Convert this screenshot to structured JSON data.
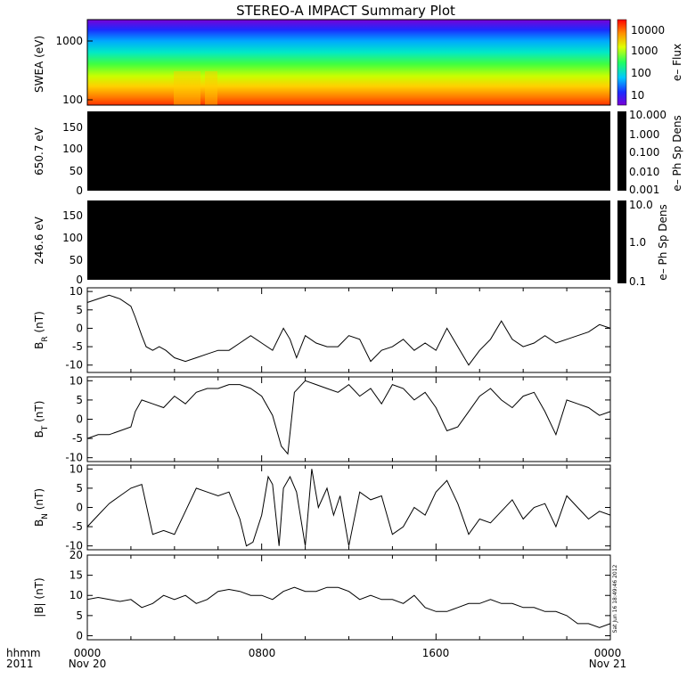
{
  "title": "STEREO-A IMPACT Summary Plot",
  "footer": {
    "left_label_1": "hhmm",
    "left_label_2": "2011",
    "x_ticks": [
      "0000",
      "0800",
      "1600",
      "0000"
    ],
    "x_dates": [
      "Nov 20",
      "Nov 21"
    ]
  },
  "timestamp": "Sat Jun 16 18:49:46 2012",
  "colors": {
    "line": "#000000",
    "frame": "#000000",
    "background": "#ffffff"
  },
  "chart_data": [
    {
      "type": "heatmap",
      "ylabel": "SWEA (eV)",
      "yscale": "log",
      "yticks": [
        "1000",
        "100"
      ],
      "colorbar": {
        "label": "e– Flux",
        "ticks": [
          "10000",
          "1000",
          "100",
          "10"
        ],
        "scale": "log"
      }
    },
    {
      "type": "heatmap",
      "ylabel": "650.7 eV",
      "yticks": [
        "150",
        "100",
        "50",
        "0"
      ],
      "ylim": [
        0,
        180
      ],
      "colorbar": {
        "label": "e– Ph Sp Dens",
        "ticks": [
          "10.000",
          "1.000",
          "0.100",
          "0.010",
          "0.001"
        ]
      }
    },
    {
      "type": "heatmap",
      "ylabel": "246.6 eV",
      "yticks": [
        "150",
        "100",
        "50",
        "0"
      ],
      "ylim": [
        0,
        180
      ],
      "colorbar": {
        "label": "e– Ph Sp Dens",
        "ticks": [
          "10.0",
          "1.0",
          "0.1"
        ]
      }
    },
    {
      "type": "line",
      "ylabel_main": "B",
      "ylabel_sub": "R",
      "ylabel_unit": " (nT)",
      "ylim": [
        -12,
        11
      ],
      "yticks": [
        "10",
        "5",
        "0",
        "-5",
        "-10"
      ],
      "x_hours": [
        0,
        0.5,
        1,
        1.5,
        2,
        2.2,
        2.5,
        2.7,
        3,
        3.3,
        3.6,
        4,
        4.5,
        5,
        5.5,
        6,
        6.5,
        7,
        7.5,
        8,
        8.5,
        9,
        9.3,
        9.6,
        10,
        10.5,
        11,
        11.5,
        12,
        12.5,
        13,
        13.5,
        14,
        14.5,
        15,
        15.5,
        16,
        16.5,
        17,
        17.5,
        18,
        18.5,
        19,
        19.5,
        20,
        20.5,
        21,
        21.5,
        22,
        22.5,
        23,
        23.5,
        24
      ],
      "values": [
        7,
        8,
        9,
        8,
        6,
        3,
        -2,
        -5,
        -6,
        -5,
        -6,
        -8,
        -9,
        -8,
        -7,
        -6,
        -6,
        -4,
        -2,
        -4,
        -6,
        0,
        -3,
        -8,
        -2,
        -4,
        -5,
        -5,
        -2,
        -3,
        -9,
        -6,
        -5,
        -3,
        -6,
        -4,
        -6,
        0,
        -5,
        -10,
        -6,
        -3,
        2,
        -3,
        -5,
        -4,
        -2,
        -4,
        -3,
        -2,
        -1,
        1,
        0
      ]
    },
    {
      "type": "line",
      "ylabel_main": "B",
      "ylabel_sub": "T",
      "ylabel_unit": " (nT)",
      "ylim": [
        -11,
        11
      ],
      "yticks": [
        "10",
        "5",
        "0",
        "-5",
        "-10"
      ],
      "x_hours": [
        0,
        0.5,
        1,
        1.5,
        2,
        2.2,
        2.5,
        3,
        3.5,
        4,
        4.5,
        5,
        5.5,
        6,
        6.5,
        7,
        7.5,
        8,
        8.5,
        8.9,
        9.2,
        9.5,
        10,
        10.5,
        11,
        11.5,
        12,
        12.5,
        13,
        13.5,
        14,
        14.5,
        15,
        15.5,
        16,
        16.5,
        17,
        17.5,
        18,
        18.5,
        19,
        19.5,
        20,
        20.5,
        21,
        21.5,
        22,
        22.5,
        23,
        23.5,
        24
      ],
      "values": [
        -5,
        -4,
        -4,
        -3,
        -2,
        2,
        5,
        4,
        3,
        6,
        4,
        7,
        8,
        8,
        9,
        9,
        8,
        6,
        1,
        -7,
        -9,
        7,
        10,
        9,
        8,
        7,
        9,
        6,
        8,
        4,
        9,
        8,
        5,
        7,
        3,
        -3,
        -2,
        2,
        6,
        8,
        5,
        3,
        6,
        7,
        2,
        -4,
        5,
        4,
        3,
        1,
        2
      ]
    },
    {
      "type": "line",
      "ylabel_main": "B",
      "ylabel_sub": "N",
      "ylabel_unit": " (nT)",
      "ylim": [
        -11,
        11
      ],
      "yticks": [
        "10",
        "5",
        "0",
        "-5",
        "-10"
      ],
      "x_hours": [
        0,
        0.5,
        1,
        1.5,
        2,
        2.5,
        3,
        3.5,
        4,
        4.5,
        5,
        5.5,
        6,
        6.5,
        7,
        7.3,
        7.6,
        8,
        8.3,
        8.5,
        8.8,
        9,
        9.3,
        9.6,
        10,
        10.3,
        10.6,
        11,
        11.3,
        11.6,
        12,
        12.5,
        13,
        13.5,
        14,
        14.5,
        15,
        15.5,
        16,
        16.5,
        17,
        17.5,
        18,
        18.5,
        19,
        19.5,
        20,
        20.5,
        21,
        21.5,
        22,
        22.5,
        23,
        23.5,
        24
      ],
      "values": [
        -5,
        -2,
        1,
        3,
        5,
        6,
        -7,
        -6,
        -7,
        -1,
        5,
        4,
        3,
        4,
        -3,
        -10,
        -9,
        -2,
        8,
        6,
        -10,
        5,
        8,
        4,
        -10,
        10,
        0,
        5,
        -2,
        3,
        -10,
        4,
        2,
        3,
        -7,
        -5,
        0,
        -2,
        4,
        7,
        1,
        -7,
        -3,
        -4,
        -1,
        2,
        -3,
        0,
        1,
        -5,
        3,
        0,
        -3,
        -1,
        -2
      ]
    },
    {
      "type": "line",
      "ylabel_main": "|B|",
      "ylabel_unit": " (nT)",
      "ylim": [
        -1,
        20
      ],
      "yticks": [
        "20",
        "15",
        "10",
        "5",
        "0"
      ],
      "x_hours": [
        0,
        0.5,
        1,
        1.5,
        2,
        2.5,
        3,
        3.5,
        4,
        4.5,
        5,
        5.5,
        6,
        6.5,
        7,
        7.5,
        8,
        8.5,
        9,
        9.5,
        10,
        10.5,
        11,
        11.5,
        12,
        12.5,
        13,
        13.5,
        14,
        14.5,
        15,
        15.5,
        16,
        16.5,
        17,
        17.5,
        18,
        18.5,
        19,
        19.5,
        20,
        20.5,
        21,
        21.5,
        22,
        22.5,
        23,
        23.5,
        24
      ],
      "values": [
        9,
        9.5,
        9,
        8.5,
        9,
        7,
        8,
        10,
        9,
        10,
        8,
        9,
        11,
        11.5,
        11,
        10,
        10,
        9,
        11,
        12,
        11,
        11,
        12,
        12,
        11,
        9,
        10,
        9,
        9,
        8,
        10,
        7,
        6,
        6,
        7,
        8,
        8,
        9,
        8,
        8,
        7,
        7,
        6,
        6,
        5,
        3,
        3,
        2,
        3
      ]
    }
  ]
}
